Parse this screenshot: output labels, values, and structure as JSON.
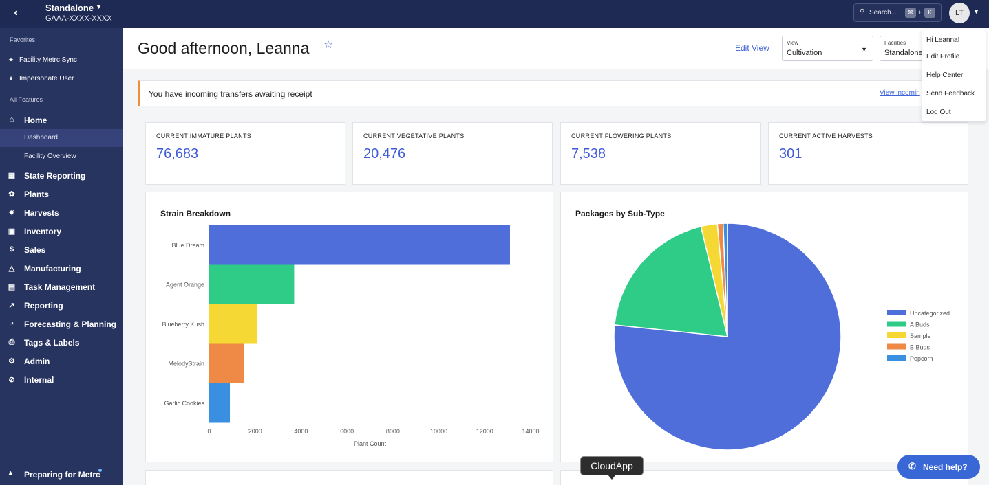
{
  "topbar": {
    "org_name": "Standalone",
    "org_id": "GAAA-XXXX-XXXX",
    "search_placeholder": "Search...",
    "shortcut_key1": "⌘",
    "shortcut_plus": "+",
    "shortcut_key2": "K",
    "avatar_initials": "LT"
  },
  "sidebar": {
    "favorites_heading": "Favorites",
    "favorites": [
      "Facility Metrc Sync",
      "Impersonate User"
    ],
    "all_features_heading": "All Features",
    "home_label": "Home",
    "home_subitems": [
      "Dashboard",
      "Facility Overview"
    ],
    "items": [
      "State Reporting",
      "Plants",
      "Harvests",
      "Inventory",
      "Sales",
      "Manufacturing",
      "Task Management",
      "Reporting",
      "Forecasting & Planning",
      "Tags & Labels",
      "Admin",
      "Internal"
    ],
    "bottom_item": "Preparing for Metrc"
  },
  "header": {
    "greeting": "Good afternoon, Leanna",
    "edit_view": "Edit View",
    "view_label": "View",
    "view_value": "Cultivation",
    "facilities_label": "Facilities",
    "facilities_value": "Standalone"
  },
  "alert": {
    "text": "You have incoming transfers awaiting receipt",
    "link": "View incomin"
  },
  "stats": [
    {
      "title": "CURRENT IMMATURE PLANTS",
      "value": "76,683"
    },
    {
      "title": "CURRENT VEGETATIVE PLANTS",
      "value": "20,476"
    },
    {
      "title": "CURRENT FLOWERING PLANTS",
      "value": "7,538"
    },
    {
      "title": "CURRENT ACTIVE HARVESTS",
      "value": "301"
    }
  ],
  "user_menu": {
    "items": [
      "Hi Leanna!",
      "Edit Profile",
      "Help Center",
      "Send Feedback",
      "Log Out"
    ]
  },
  "tooltip": "CloudApp",
  "help_button": "Need help?",
  "colors": {
    "topbar": "#1f2a54",
    "sidebar": "#283460",
    "accent": "#3f5bd6",
    "alert_border": "#ef8f3a"
  },
  "chart_data": [
    {
      "type": "bar",
      "orientation": "horizontal",
      "title": "Strain Breakdown",
      "categories": [
        "Blue Dream",
        "Agent Orange",
        "Blueberry Kush",
        "MelodyStrain",
        "Garlic Cookies"
      ],
      "values": [
        13100,
        3700,
        2100,
        1500,
        900
      ],
      "colors": [
        "#4f6ed9",
        "#2ecc87",
        "#f5d833",
        "#ee8a45",
        "#3b8fe0"
      ],
      "xlabel": "Plant Count",
      "ylabel": "",
      "xlim": [
        0,
        14000
      ],
      "xticks": [
        "0",
        "2000",
        "4000",
        "6000",
        "8000",
        "10000",
        "12000",
        "14000"
      ]
    },
    {
      "type": "pie",
      "title": "Packages by Sub-Type",
      "labels": [
        "Uncategorized",
        "A Buds",
        "Sample",
        "B Buds",
        "Popcorn"
      ],
      "values": [
        75.5,
        19.3,
        2.3,
        0.8,
        0.6
      ],
      "colors": [
        "#4f6ed9",
        "#2ecc87",
        "#f5d833",
        "#ee8a45",
        "#3b8fe0"
      ],
      "legend": "right"
    }
  ]
}
